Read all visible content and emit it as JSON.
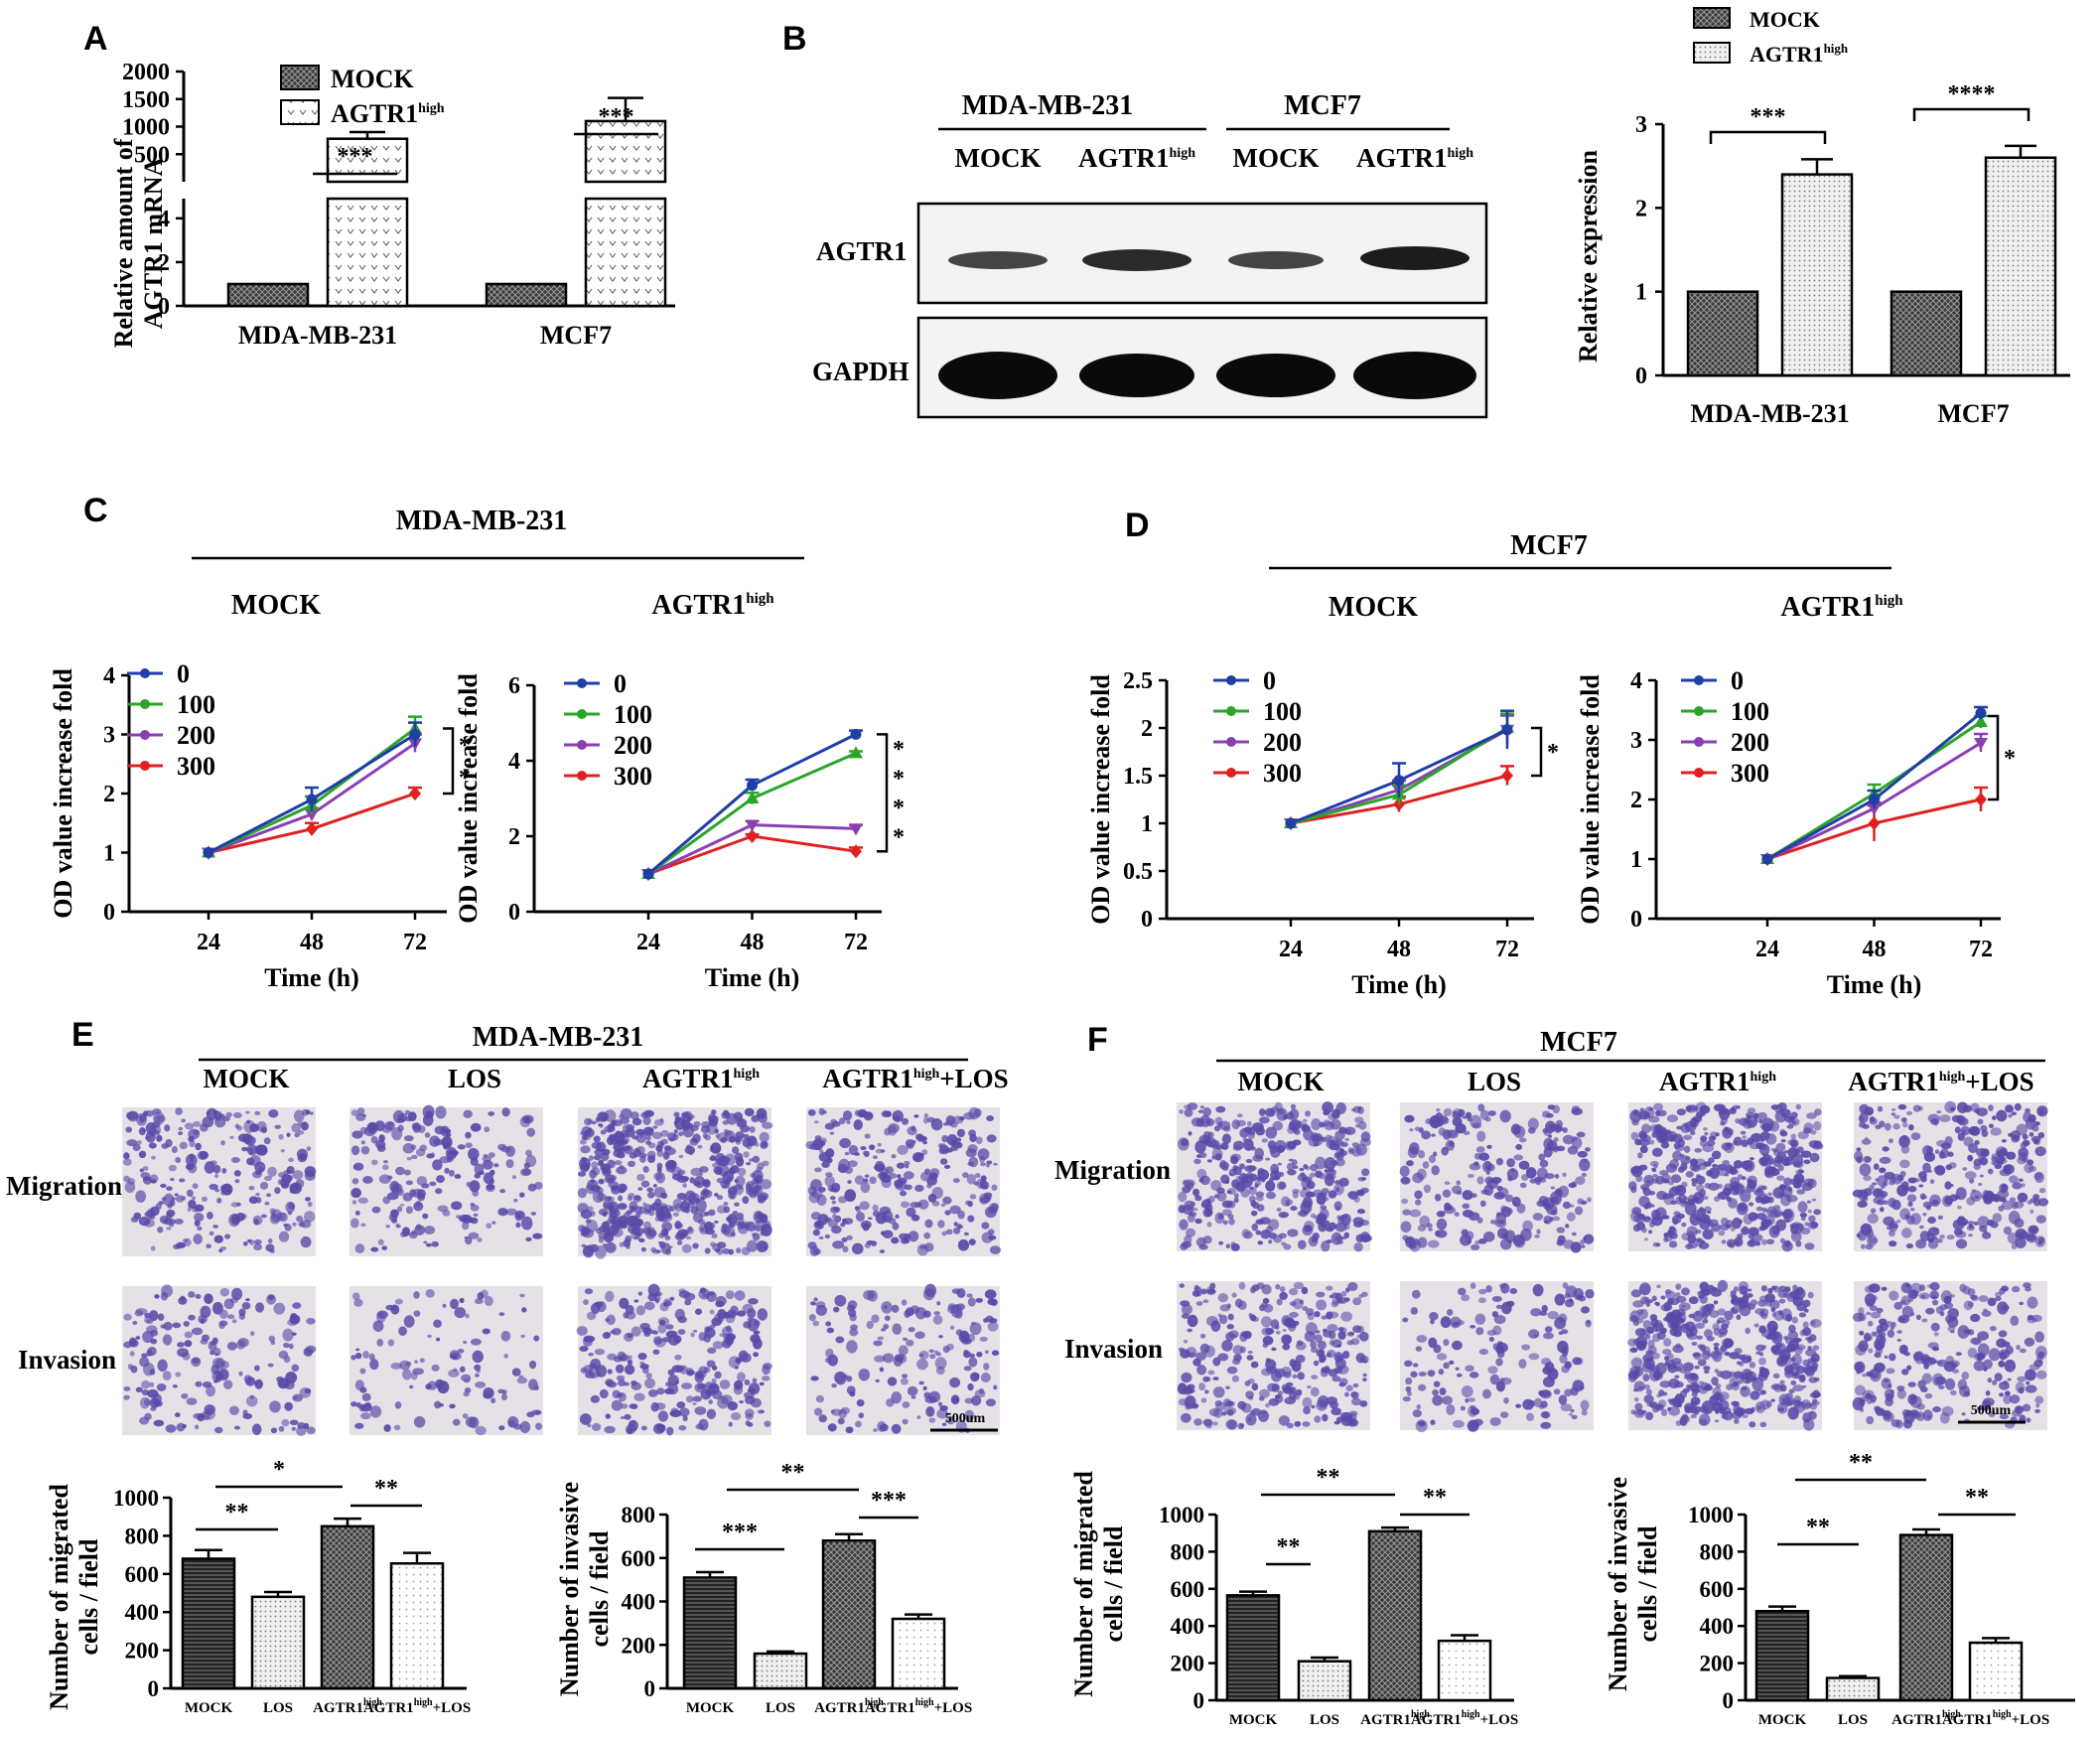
{
  "colors": {
    "mock": "#555",
    "agtr": "#eee",
    "s0": "#1f3ea6",
    "s100": "#2aa52a",
    "s200": "#8a3fb0",
    "s300": "#e02020",
    "stain": "#5a4aa8",
    "field": "#e6e1e7"
  },
  "panels": {
    "A": {
      "label": "A",
      "legend": [
        "MOCK",
        "AGTR1"
      ],
      "legend_sup": "high",
      "ylabel_lines": [
        "Relative amount of",
        "AGTR1 mRNA"
      ],
      "sig": [
        "***",
        "***"
      ]
    },
    "B": {
      "label": "B",
      "blot_groups": [
        "MDA-MB-231",
        "MCF7"
      ],
      "lane_labels": [
        "MOCK",
        "AGTR1",
        "MOCK",
        "AGTR1"
      ],
      "lane_sup": "high",
      "row_labels": [
        "AGTR1",
        "GAPDH"
      ],
      "legend": [
        "MOCK",
        "AGTR1"
      ],
      "legend_sup": "high",
      "ylabel": "Relative expression",
      "sig": [
        "***",
        "****"
      ]
    },
    "C": {
      "label": "C",
      "group": "MDA-MB-231",
      "subtitles": [
        "MOCK",
        "AGTR1"
      ],
      "sub_sup": "high",
      "legend": [
        "0",
        "100",
        "200",
        "300"
      ],
      "ylabel": "OD value increase fold",
      "xlabel": "Time (h)",
      "sig": [
        "*",
        "*",
        "*",
        "*",
        "*",
        "*"
      ]
    },
    "D": {
      "label": "D",
      "group": "MCF7",
      "subtitles": [
        "MOCK",
        "AGTR1"
      ],
      "sub_sup": "high",
      "legend": [
        "0",
        "100",
        "200",
        "300"
      ],
      "ylabel": "OD value increase fold",
      "xlabel": "Time (h)",
      "sig": [
        "*",
        "*"
      ]
    },
    "E": {
      "label": "E",
      "group": "MDA-MB-231",
      "columns": [
        "MOCK",
        "LOS",
        "AGTR1",
        "AGTR1"
      ],
      "col_sup": "high",
      "col_suffix": "+LOS",
      "rows": [
        "Migration",
        "Invasion"
      ],
      "scale": "500um",
      "ylabels": [
        [
          "Number of migrated",
          "cells / field"
        ],
        [
          "Number of invasive",
          "cells / field"
        ]
      ],
      "xcats": [
        "MOCK",
        "LOS",
        "AGTR1",
        "AGTR1"
      ],
      "xcat_sup": "high",
      "xcat_suffix": "+LOS",
      "sig1": [
        "*",
        "**",
        "**"
      ],
      "sig2": [
        "**",
        "***",
        "***"
      ]
    },
    "F": {
      "label": "F",
      "group": "MCF7",
      "columns": [
        "MOCK",
        "LOS",
        "AGTR1",
        "AGTR1"
      ],
      "col_sup": "high",
      "col_suffix": "+LOS",
      "rows": [
        "Migration",
        "Invasion"
      ],
      "scale": "500um",
      "ylabels": [
        [
          "Number of migrated",
          "cells / field"
        ],
        [
          "Number of invasive",
          "cells / field"
        ]
      ],
      "xcats": [
        "MOCK",
        "LOS",
        "AGTR1",
        "AGTR1"
      ],
      "xcat_sup": "high",
      "xcat_suffix": "+LOS",
      "sig1": [
        "**",
        "**",
        "**"
      ],
      "sig2": [
        "**",
        "**",
        "**"
      ]
    }
  },
  "chart_data": [
    {
      "id": "A",
      "type": "bar",
      "categories": [
        "MDA-MB-231",
        "MCF7"
      ],
      "series": [
        {
          "name": "MOCK",
          "values": [
            1,
            1
          ]
        },
        {
          "name": "AGTR1high",
          "values": [
            780,
            1100
          ],
          "err": [
            120,
            420
          ]
        }
      ],
      "broken_axis": {
        "lower": [
          0,
          4
        ],
        "upper": [
          0,
          2000
        ]
      },
      "yticks_lower": [
        0,
        2,
        4
      ],
      "yticks_upper": [
        500,
        1000,
        1500,
        2000
      ]
    },
    {
      "id": "B",
      "type": "bar",
      "categories": [
        "MDA-MB-231",
        "MCF7"
      ],
      "series": [
        {
          "name": "MOCK",
          "values": [
            1,
            1
          ]
        },
        {
          "name": "AGTR1high",
          "values": [
            2.4,
            2.6
          ],
          "err": [
            0.18,
            0.14
          ]
        }
      ],
      "ylim": [
        0,
        3
      ],
      "yticks": [
        0,
        1,
        2,
        3
      ]
    },
    {
      "id": "C1",
      "type": "line",
      "x": [
        24,
        48,
        72
      ],
      "series": [
        {
          "name": "0",
          "values": [
            1,
            1.9,
            3.0
          ],
          "err": [
            0,
            0.2,
            0.2
          ]
        },
        {
          "name": "100",
          "values": [
            1,
            1.8,
            3.1
          ],
          "err": [
            0,
            0.15,
            0.2
          ]
        },
        {
          "name": "200",
          "values": [
            1,
            1.65,
            2.85
          ],
          "err": [
            0,
            0.1,
            0.15
          ]
        },
        {
          "name": "300",
          "values": [
            1,
            1.4,
            2.0
          ],
          "err": [
            0,
            0.1,
            0.1
          ]
        }
      ],
      "ylim": [
        0,
        4
      ],
      "yticks": [
        0,
        1,
        2,
        3,
        4
      ]
    },
    {
      "id": "C2",
      "type": "line",
      "x": [
        24,
        48,
        72
      ],
      "series": [
        {
          "name": "0",
          "values": [
            1,
            3.35,
            4.7
          ],
          "err": [
            0,
            0.15,
            0.1
          ]
        },
        {
          "name": "100",
          "values": [
            1,
            3.0,
            4.2
          ],
          "err": [
            0,
            0.15,
            0.05
          ]
        },
        {
          "name": "200",
          "values": [
            1,
            2.3,
            2.2
          ],
          "err": [
            0,
            0.1,
            0.1
          ]
        },
        {
          "name": "300",
          "values": [
            1,
            2.0,
            1.6
          ],
          "err": [
            0,
            0.05,
            0.1
          ]
        }
      ],
      "ylim": [
        0,
        6
      ],
      "yticks": [
        0,
        2,
        4,
        6
      ]
    },
    {
      "id": "D1",
      "type": "line",
      "x": [
        24,
        48,
        72
      ],
      "series": [
        {
          "name": "0",
          "values": [
            1,
            1.45,
            1.98
          ],
          "err": [
            0,
            0.18,
            0.2
          ]
        },
        {
          "name": "100",
          "values": [
            1,
            1.3,
            2.0
          ],
          "err": [
            0,
            0.1,
            0.15
          ]
        },
        {
          "name": "200",
          "values": [
            1,
            1.35,
            1.98
          ],
          "err": [
            0,
            0.1,
            0.15
          ]
        },
        {
          "name": "300",
          "values": [
            1,
            1.2,
            1.5
          ],
          "err": [
            0,
            0.08,
            0.1
          ]
        }
      ],
      "ylim": [
        0,
        2.5
      ],
      "yticks": [
        0,
        0.5,
        1,
        1.5,
        2,
        2.5
      ]
    },
    {
      "id": "D2",
      "type": "line",
      "x": [
        24,
        48,
        72
      ],
      "series": [
        {
          "name": "0",
          "values": [
            1,
            2.0,
            3.45
          ],
          "err": [
            0,
            0.15,
            0.1
          ]
        },
        {
          "name": "100",
          "values": [
            1,
            2.1,
            3.3
          ],
          "err": [
            0,
            0.15,
            0.1
          ]
        },
        {
          "name": "200",
          "values": [
            1,
            1.85,
            2.95
          ],
          "err": [
            0,
            0.1,
            0.15
          ]
        },
        {
          "name": "300",
          "values": [
            1,
            1.6,
            2.0
          ],
          "err": [
            0,
            0.3,
            0.2
          ]
        }
      ],
      "ylim": [
        0,
        4
      ],
      "yticks": [
        0,
        1,
        2,
        3,
        4
      ]
    },
    {
      "id": "E1",
      "type": "bar",
      "categories": [
        "MOCK",
        "LOS",
        "AGTR1high",
        "AGTR1high+LOS"
      ],
      "values": [
        680,
        480,
        850,
        655
      ],
      "err": [
        45,
        25,
        40,
        55
      ],
      "ylim": [
        0,
        1000
      ],
      "yticks": [
        0,
        200,
        400,
        600,
        800,
        1000
      ]
    },
    {
      "id": "E2",
      "type": "bar",
      "categories": [
        "MOCK",
        "LOS",
        "AGTR1high",
        "AGTR1high+LOS"
      ],
      "values": [
        510,
        160,
        680,
        320
      ],
      "err": [
        25,
        10,
        30,
        20
      ],
      "ylim": [
        0,
        800
      ],
      "yticks": [
        0,
        200,
        400,
        600,
        800
      ]
    },
    {
      "id": "F1",
      "type": "bar",
      "categories": [
        "MOCK",
        "LOS",
        "AGTR1high",
        "AGTR1high+LOS"
      ],
      "values": [
        565,
        210,
        910,
        320
      ],
      "err": [
        20,
        20,
        20,
        30
      ],
      "ylim": [
        0,
        1000
      ],
      "yticks": [
        0,
        200,
        400,
        600,
        800,
        1000
      ]
    },
    {
      "id": "F2",
      "type": "bar",
      "categories": [
        "MOCK",
        "LOS",
        "AGTR1high",
        "AGTR1high+LOS"
      ],
      "values": [
        480,
        120,
        890,
        310
      ],
      "err": [
        25,
        10,
        30,
        25
      ],
      "ylim": [
        0,
        1000
      ],
      "yticks": [
        0,
        200,
        400,
        600,
        800,
        1000
      ]
    }
  ]
}
